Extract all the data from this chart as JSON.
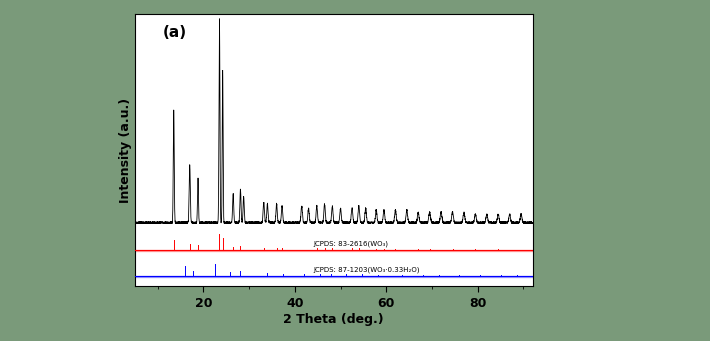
{
  "panel_label": "(a)",
  "xlabel": "2 Theta (deg.)",
  "ylabel": "Intensity (a.u.)",
  "xlim": [
    5,
    92
  ],
  "x_ticks": [
    20,
    40,
    60,
    80
  ],
  "background_color": "#ffffff",
  "outer_bg": "#7a9a7a",
  "red_label": "JCPDS: 83-2616(WO₃)",
  "blue_label": "JCPDS: 87-1203(WO₃·0.33H₂O)"
}
